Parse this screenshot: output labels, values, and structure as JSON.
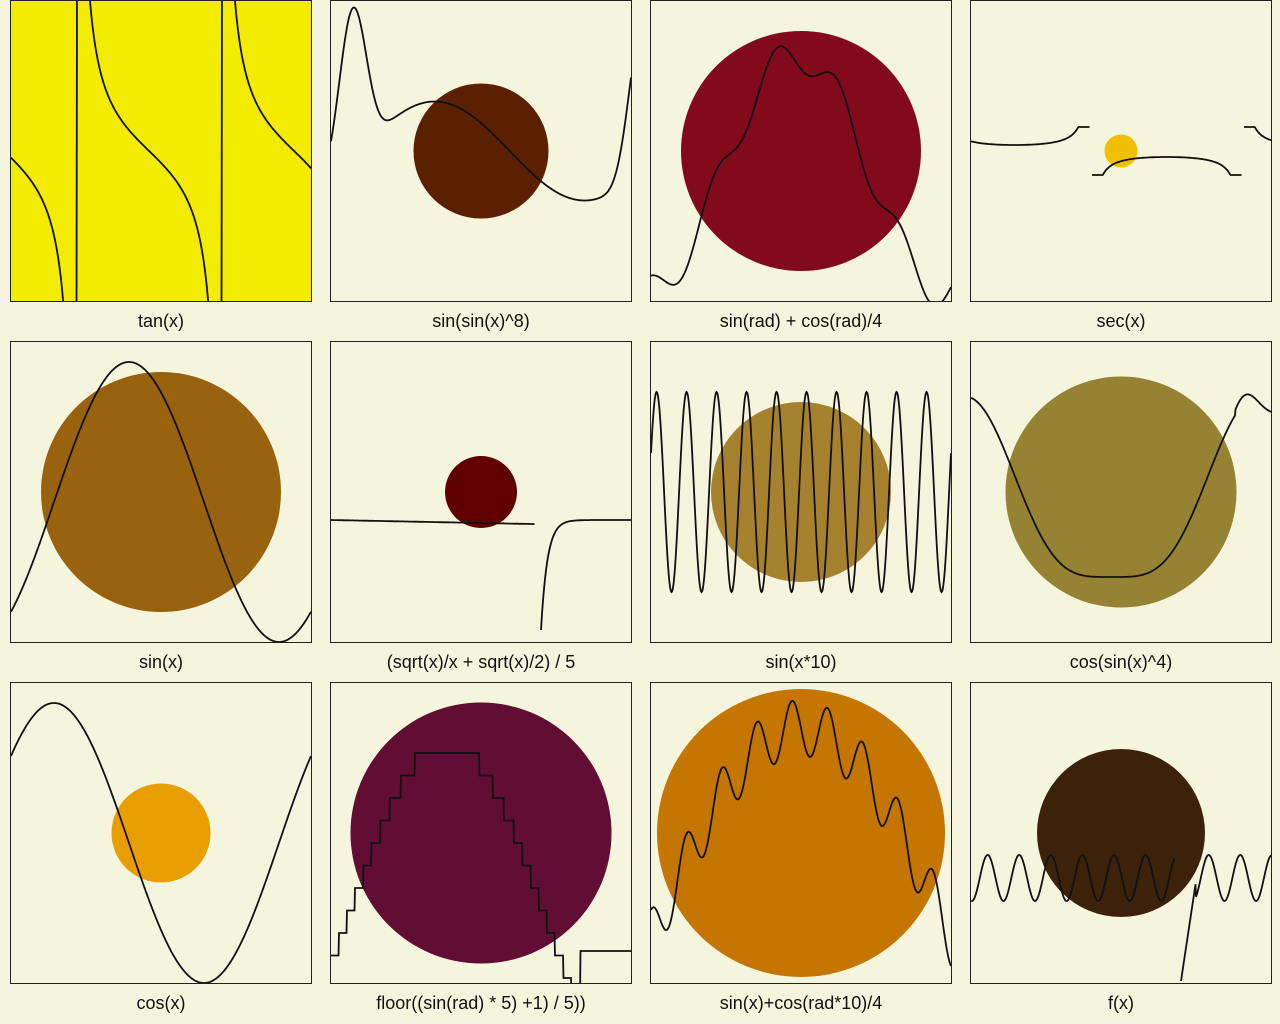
{
  "panels": [
    {
      "label": "tan(x)",
      "circle_color": "#f4ec00",
      "circle_size": 1.0,
      "curve": "tan"
    },
    {
      "label": "sin(sin(x)^8)",
      "circle_color": "#5a2000",
      "circle_size": 0.45,
      "curve": "sinsin8"
    },
    {
      "label": "sin(rad) + cos(rad)/4",
      "circle_color": "#820a1a",
      "circle_size": 0.8,
      "curve": "radmix"
    },
    {
      "label": "sec(x)",
      "circle_color": "#f0c000",
      "circle_size": 0.11,
      "curve": "sec"
    },
    {
      "label": "sin(x)",
      "circle_color": "#98620e",
      "circle_size": 0.8,
      "curve": "sin"
    },
    {
      "label": "(sqrt(x)/x + sqrt(x)/2) / 5",
      "circle_color": "#600000",
      "circle_size": 0.24,
      "curve": "sqrtmix"
    },
    {
      "label": "sin(x*10)",
      "circle_color": "#a6822e",
      "circle_size": 0.6,
      "curve": "sin10"
    },
    {
      "label": "cos(sin(x)^4)",
      "circle_color": "#958232",
      "circle_size": 0.77,
      "curve": "cossin4"
    },
    {
      "label": "cos(x)",
      "circle_color": "#e89e00",
      "circle_size": 0.33,
      "curve": "cos"
    },
    {
      "label": "floor((sin(rad) * 5) +1) / 5))",
      "circle_color": "#620e34",
      "circle_size": 0.87,
      "curve": "floorsin"
    },
    {
      "label": "sin(x)+cos(rad*10)/4",
      "circle_color": "#c47600",
      "circle_size": 0.96,
      "curve": "sincos10"
    },
    {
      "label": "f(x)",
      "circle_color": "#3c220a",
      "circle_size": 0.56,
      "curve": "fx"
    }
  ]
}
